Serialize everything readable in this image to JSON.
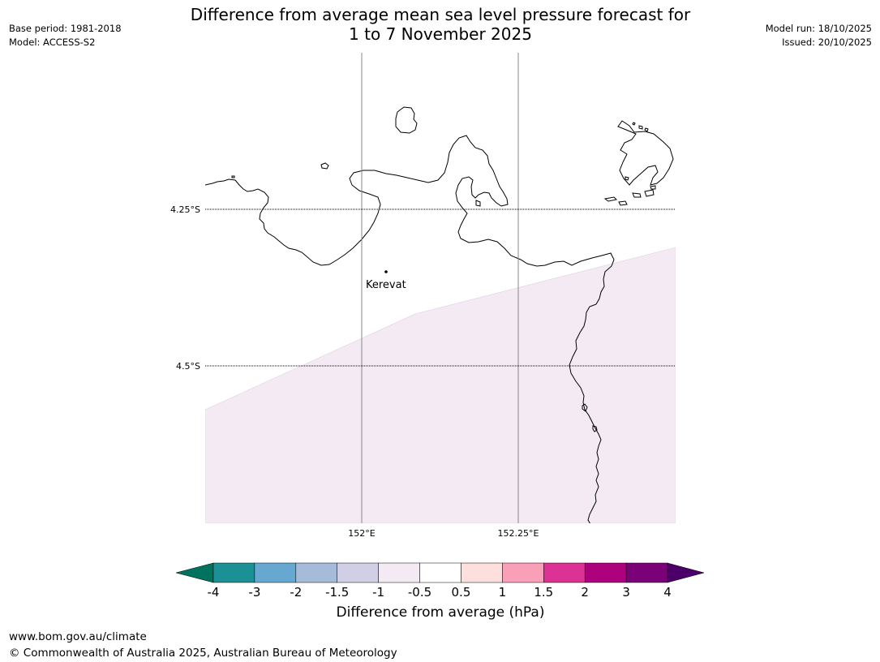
{
  "header": {
    "title_line1": "Difference from average mean sea level pressure forecast for",
    "title_line2": "1 to 7 November 2025",
    "base_period": "Base period: 1981-2018",
    "model": "Model: ACCESS-S2",
    "model_run": "Model run: 18/10/2025",
    "issued": "Issued: 20/10/2025"
  },
  "map": {
    "latitude_labels": [
      "4.25°S",
      "4.5°S"
    ],
    "longitude_labels": [
      "152°E",
      "152.25°E"
    ],
    "place_label": "Kerevat",
    "shaded_region_level": "-1 to -0.5",
    "colors": {
      "coastline": "#000000",
      "grid_line": "#888888",
      "shaded_region": "#f4eaf4"
    }
  },
  "colorbar": {
    "title": "Difference from average (hPa)",
    "tick_labels": [
      "-4",
      "-3",
      "-2",
      "-1.5",
      "-1",
      "-0.5",
      "0.5",
      "1",
      "1.5",
      "2",
      "3",
      "4"
    ],
    "under_color": "#00735f",
    "over_color": "#4a0068",
    "colors": [
      "#1b9196",
      "#67a8d0",
      "#a6bad9",
      "#d1cfe5",
      "#f4eaf4",
      "#ffffff",
      "#fde0dd",
      "#f99fb8",
      "#dc3295",
      "#ad017e",
      "#7a0177"
    ]
  },
  "footer": {
    "url": "www.bom.gov.au/climate",
    "copyright": "© Commonwealth of Australia 2025, Australian Bureau of Meteorology"
  }
}
